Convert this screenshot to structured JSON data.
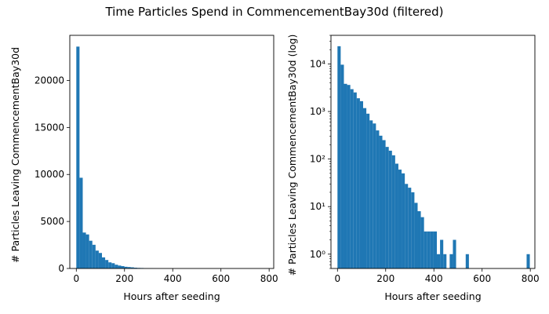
{
  "chart_data": [
    {
      "type": "bar",
      "scale": "linear",
      "title": "",
      "xlabel": "Hours after seeding",
      "ylabel": "# Particles Leaving CommencementBay30d",
      "xlim": [
        -27,
        819
      ],
      "ylim": [
        0,
        24800
      ],
      "xticks": [
        0,
        200,
        400,
        600,
        800
      ],
      "yticks": [
        0,
        5000,
        10000,
        15000,
        20000
      ],
      "bin_width": 13.3,
      "bins": [
        {
          "x": 0,
          "value": 23600
        },
        {
          "x": 13.3,
          "value": 9650
        },
        {
          "x": 26.6,
          "value": 3820
        },
        {
          "x": 39.9,
          "value": 3620
        },
        {
          "x": 53.2,
          "value": 2950
        },
        {
          "x": 66.5,
          "value": 2520
        },
        {
          "x": 79.8,
          "value": 1900
        },
        {
          "x": 93.1,
          "value": 1650
        },
        {
          "x": 106.4,
          "value": 1180
        },
        {
          "x": 119.7,
          "value": 900
        },
        {
          "x": 133.0,
          "value": 650
        },
        {
          "x": 146.3,
          "value": 560
        },
        {
          "x": 159.6,
          "value": 400
        },
        {
          "x": 172.9,
          "value": 310
        },
        {
          "x": 186.2,
          "value": 250
        },
        {
          "x": 199.5,
          "value": 180
        },
        {
          "x": 212.8,
          "value": 150
        },
        {
          "x": 226.1,
          "value": 120
        },
        {
          "x": 239.4,
          "value": 80
        },
        {
          "x": 252.7,
          "value": 60
        },
        {
          "x": 266.0,
          "value": 50
        },
        {
          "x": 279.3,
          "value": 30
        },
        {
          "x": 292.6,
          "value": 25
        },
        {
          "x": 305.9,
          "value": 20
        },
        {
          "x": 319.2,
          "value": 12
        },
        {
          "x": 332.5,
          "value": 8
        }
      ]
    },
    {
      "type": "bar",
      "scale": "log",
      "title": "",
      "xlabel": "Hours after seeding",
      "ylabel": "# Particles Leaving CommencementBay30d (log)",
      "xlim": [
        -27,
        819
      ],
      "ylim": [
        0.5,
        40000
      ],
      "xticks": [
        0,
        200,
        400,
        600,
        800
      ],
      "yticks": [
        1,
        10,
        100,
        1000,
        10000
      ],
      "ytick_labels": [
        "10⁰",
        "10¹",
        "10²",
        "10³",
        "10⁴"
      ],
      "bin_width": 13.3,
      "bins": [
        {
          "x": 0,
          "value": 23600
        },
        {
          "x": 13.3,
          "value": 9650
        },
        {
          "x": 26.6,
          "value": 3820
        },
        {
          "x": 39.9,
          "value": 3620
        },
        {
          "x": 53.2,
          "value": 2950
        },
        {
          "x": 66.5,
          "value": 2520
        },
        {
          "x": 79.8,
          "value": 1900
        },
        {
          "x": 93.1,
          "value": 1650
        },
        {
          "x": 106.4,
          "value": 1180
        },
        {
          "x": 119.7,
          "value": 900
        },
        {
          "x": 133.0,
          "value": 650
        },
        {
          "x": 146.3,
          "value": 560
        },
        {
          "x": 159.6,
          "value": 400
        },
        {
          "x": 172.9,
          "value": 310
        },
        {
          "x": 186.2,
          "value": 250
        },
        {
          "x": 199.5,
          "value": 180
        },
        {
          "x": 212.8,
          "value": 150
        },
        {
          "x": 226.1,
          "value": 120
        },
        {
          "x": 239.4,
          "value": 80
        },
        {
          "x": 252.7,
          "value": 60
        },
        {
          "x": 266.0,
          "value": 50
        },
        {
          "x": 279.3,
          "value": 30
        },
        {
          "x": 292.6,
          "value": 25
        },
        {
          "x": 305.9,
          "value": 20
        },
        {
          "x": 319.2,
          "value": 12
        },
        {
          "x": 332.5,
          "value": 8
        },
        {
          "x": 345.8,
          "value": 6
        },
        {
          "x": 359.1,
          "value": 3
        },
        {
          "x": 372.4,
          "value": 3
        },
        {
          "x": 385.7,
          "value": 3
        },
        {
          "x": 399.0,
          "value": 3
        },
        {
          "x": 412.3,
          "value": 1
        },
        {
          "x": 425.6,
          "value": 2
        },
        {
          "x": 438.9,
          "value": 1
        },
        {
          "x": 465.5,
          "value": 1
        },
        {
          "x": 478.8,
          "value": 2
        },
        {
          "x": 532.0,
          "value": 1
        },
        {
          "x": 784.7,
          "value": 1
        }
      ]
    }
  ],
  "figure": {
    "suptitle": "Time Particles Spend in CommencementBay30d (filtered)",
    "bar_color": "#1f77b4"
  }
}
